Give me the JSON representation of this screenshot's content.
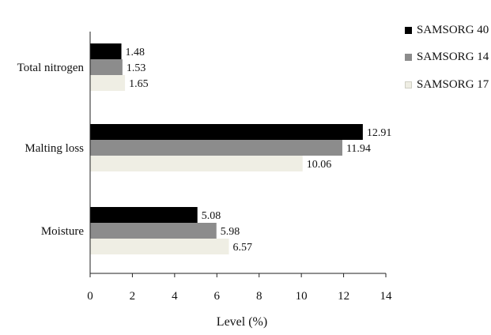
{
  "chart_data": {
    "type": "bar",
    "orientation": "horizontal",
    "categories": [
      "Total nitrogen",
      "Malting loss",
      "Moisture"
    ],
    "series": [
      {
        "name": "SAMSORG 40",
        "color": "#000000",
        "values": [
          1.48,
          12.91,
          5.08
        ]
      },
      {
        "name": "SAMSORG 14",
        "color": "#8c8c8c",
        "values": [
          1.53,
          11.94,
          5.98
        ]
      },
      {
        "name": "SAMSORG 17",
        "color": "#efeee4",
        "values": [
          1.65,
          10.06,
          6.57
        ]
      }
    ],
    "xlabel": "Level (%)",
    "ylabel": "",
    "xlim": [
      0,
      14
    ],
    "xticks": [
      0,
      2,
      4,
      6,
      8,
      10,
      12,
      14
    ],
    "grid": false,
    "legend": "top-right"
  }
}
